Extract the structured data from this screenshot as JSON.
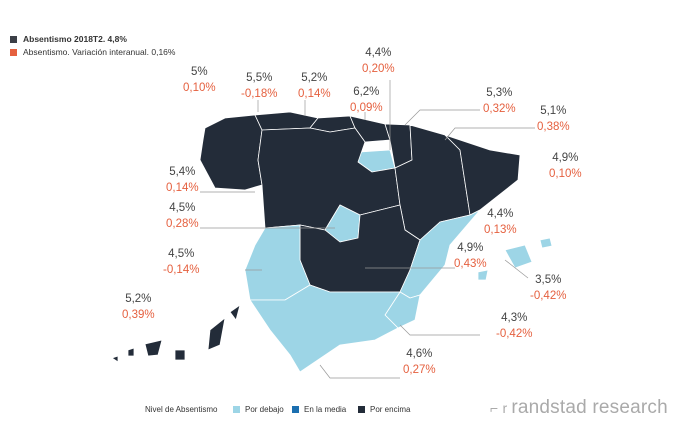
{
  "legend_top": [
    {
      "label": "Absentismo 2018T2. 4,8%",
      "color": "#3c3f47",
      "bold": true
    },
    {
      "label": "Absentismo. Variación interanual. 0,16%",
      "color": "#e5603f",
      "bold": false
    }
  ],
  "colors": {
    "por_debajo": "#9dd5e6",
    "en_la_media": "#1b6fb0",
    "por_encima": "#232c39",
    "variation": "#e5603f"
  },
  "regions": [
    {
      "value": "5%",
      "change": "0,10%",
      "level": "por_encima"
    },
    {
      "value": "5,5%",
      "change": "-0,18%",
      "level": "por_encima"
    },
    {
      "value": "5,2%",
      "change": "0,14%",
      "level": "por_encima"
    },
    {
      "value": "6,2%",
      "change": "0,09%",
      "level": "por_encima"
    },
    {
      "value": "4,4%",
      "change": "0,20%",
      "level": "por_debajo"
    },
    {
      "value": "5,3%",
      "change": "0,32%",
      "level": "por_encima"
    },
    {
      "value": "5,1%",
      "change": "0,38%",
      "level": "por_encima"
    },
    {
      "value": "4,9%",
      "change": "0,10%",
      "level": "por_encima"
    },
    {
      "value": "5,4%",
      "change": "0,14%",
      "level": "por_encima"
    },
    {
      "value": "4,5%",
      "change": "0,28%",
      "level": "por_debajo"
    },
    {
      "value": "4,4%",
      "change": "0,13%",
      "level": "por_debajo"
    },
    {
      "value": "4,9%",
      "change": "0,43%",
      "level": "por_encima"
    },
    {
      "value": "4,5%",
      "change": "-0,14%",
      "level": "por_debajo"
    },
    {
      "value": "3,5%",
      "change": "-0,42%",
      "level": "por_debajo"
    },
    {
      "value": "5,2%",
      "change": "0,39%",
      "level": "por_encima"
    },
    {
      "value": "4,3%",
      "change": "-0,42%",
      "level": "por_debajo"
    },
    {
      "value": "4,6%",
      "change": "0,27%",
      "level": "por_debajo"
    }
  ],
  "bottom_legend": {
    "title": "Nivel de Absentismo",
    "items": [
      {
        "label": "Por debajo",
        "color": "#9dd5e6"
      },
      {
        "label": "En la media",
        "color": "#1b6fb0"
      },
      {
        "label": "Por encima",
        "color": "#232c39"
      }
    ]
  },
  "brand": "randstad research"
}
